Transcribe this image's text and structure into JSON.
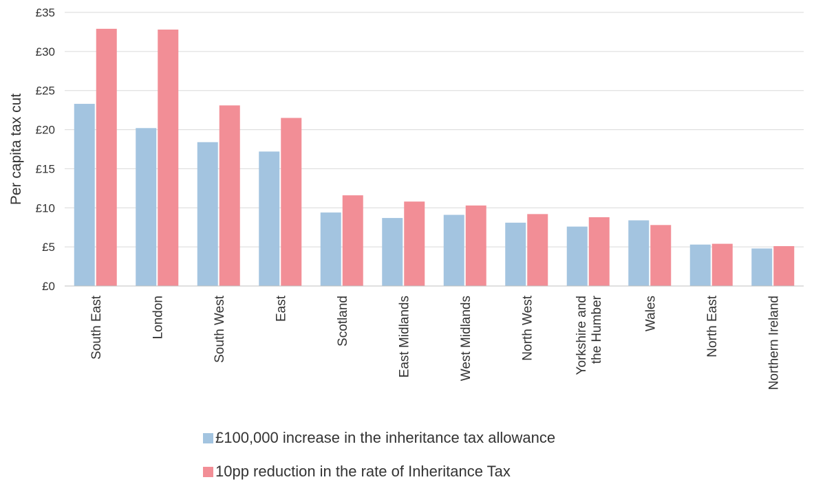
{
  "chart_data": {
    "type": "bar",
    "title": "",
    "xlabel": "",
    "ylabel": "Per capita tax cut",
    "ylim": [
      0,
      35
    ],
    "yticks": [
      "£0",
      "£5",
      "£10",
      "£15",
      "£20",
      "£25",
      "£30",
      "£35"
    ],
    "grid": true,
    "legend_position": "bottom",
    "categories": [
      [
        "South East"
      ],
      [
        "London"
      ],
      [
        "South West"
      ],
      [
        "East"
      ],
      [
        "Scotland"
      ],
      [
        "East Midlands"
      ],
      [
        "West Midlands"
      ],
      [
        "North West"
      ],
      [
        "Yorkshire and",
        "the Humber"
      ],
      [
        "Wales"
      ],
      [
        "North East"
      ],
      [
        "Northern Ireland"
      ]
    ],
    "series": [
      {
        "name": "£100,000 increase in the inheritance tax allowance",
        "color": "#a3c4e0",
        "values": [
          23.3,
          20.2,
          18.4,
          17.2,
          9.4,
          8.7,
          9.1,
          8.1,
          7.6,
          8.4,
          5.3,
          4.8
        ]
      },
      {
        "name": "10pp reduction in the rate of Inheritance Tax",
        "color": "#f28e96",
        "values": [
          32.9,
          32.8,
          23.1,
          21.5,
          11.6,
          10.8,
          10.3,
          9.2,
          8.8,
          7.8,
          5.4,
          5.1
        ]
      }
    ]
  }
}
